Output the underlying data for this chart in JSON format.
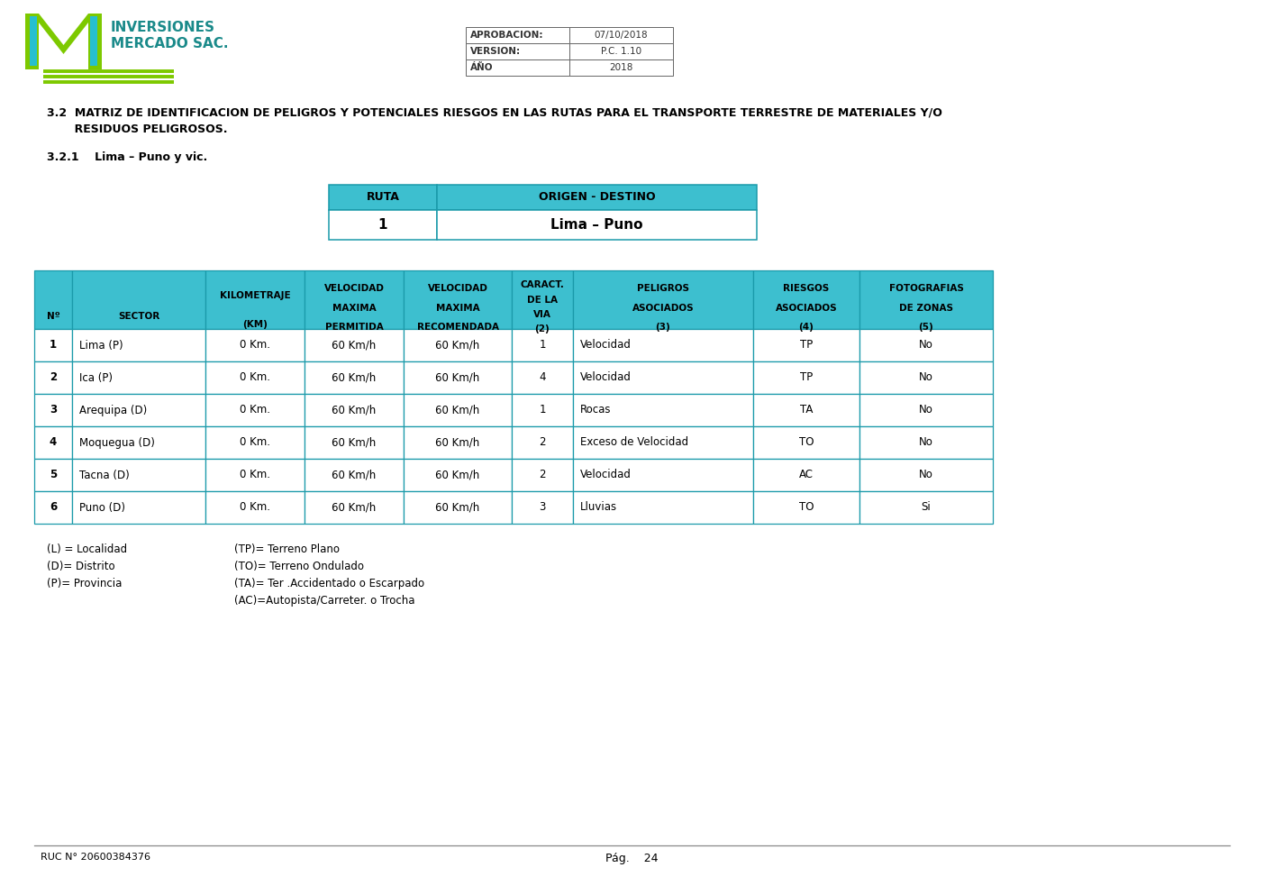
{
  "title_line1": "3.2  MATRIZ DE IDENTIFICACION DE PELIGROS Y POTENCIALES RIESGOS EN LAS RUTAS PARA EL TRANSPORTE TERRESTRE DE MATERIALES Y/O",
  "title_line2": "       RESIDUOS PELIGROSOS.",
  "subtitle": "3.2.1    Lima – Puno y vic.",
  "company_name1": "INVERSIONES",
  "company_name2": "MERCADO SAC.",
  "header_info": [
    [
      "APROBACION:",
      "07/10/2018"
    ],
    [
      "VERSION:",
      "P.C. 1.10"
    ],
    [
      "ÁÑO",
      "2018"
    ]
  ],
  "ruta_header": [
    "RUTA",
    "ORIGEN - DESTINO"
  ],
  "ruta_row": [
    "1",
    "Lima – Puno"
  ],
  "main_headers": [
    "Nº",
    "SECTOR",
    "KILOMETRAJE\n(KM)",
    "VELOCIDAD\nMAXIMA\nPERMITIDA",
    "VELOCIDAD\nMAXIMA\nRECOMENDADA",
    "CARACT.\nDE LA\nVIA\n(2)",
    "PELIGROS\nASOCIADOS\n(3)",
    "RIESGOS\nASOCIADOS\n(4)",
    "FOTOGRAFIAS\nDE ZONAS\n(5)"
  ],
  "table_data": [
    [
      "1",
      "Lima (P)",
      "0 Km.",
      "60 Km/h",
      "60 Km/h",
      "1",
      "Velocidad",
      "TP",
      "No"
    ],
    [
      "2",
      "Ica (P)",
      "0 Km.",
      "60 Km/h",
      "60 Km/h",
      "4",
      "Velocidad",
      "TP",
      "No"
    ],
    [
      "3",
      "Arequipa (D)",
      "0 Km.",
      "60 Km/h",
      "60 Km/h",
      "1",
      "Rocas",
      "TA",
      "No"
    ],
    [
      "4",
      "Moquegua (D)",
      "0 Km.",
      "60 Km/h",
      "60 Km/h",
      "2",
      "Exceso de Velocidad",
      "TO",
      "No"
    ],
    [
      "5",
      "Tacna (D)",
      "0 Km.",
      "60 Km/h",
      "60 Km/h",
      "2",
      "Velocidad",
      "AC",
      "No"
    ],
    [
      "6",
      "Puno (D)",
      "0 Km.",
      "60 Km/h",
      "60 Km/h",
      "3",
      "Lluvias",
      "TO",
      "Si"
    ]
  ],
  "legend": [
    [
      "(L) = Localidad",
      "(TP)= Terreno Plano"
    ],
    [
      "(D)= Distrito",
      "(TO)= Terreno Ondulado"
    ],
    [
      "(P)= Provincia",
      "(TA)= Ter .Accidentado o Escarpado"
    ],
    [
      "",
      "(AC)=Autopista/Carreter. o Trocha"
    ]
  ],
  "footer_ruc": "RUC N° 20600384376",
  "footer_page": "Pág.    24",
  "header_bg": "#3dbfcf",
  "header_border": "#1a9aaa",
  "bg_color": "#ffffff"
}
